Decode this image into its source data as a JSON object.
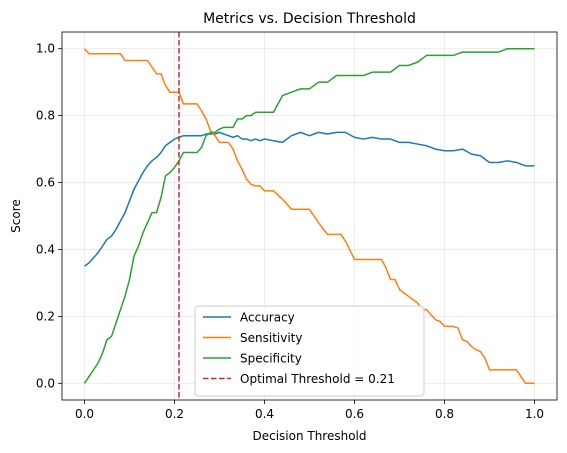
{
  "chart_data": {
    "type": "line",
    "title": "Metrics vs. Decision Threshold",
    "xlabel": "Decision Threshold",
    "ylabel": "Score",
    "xlim": [
      -0.05,
      1.05
    ],
    "ylim": [
      -0.05,
      1.05
    ],
    "xticks": [
      {
        "value": 0.0,
        "label": "0.0"
      },
      {
        "value": 0.2,
        "label": "0.2"
      },
      {
        "value": 0.4,
        "label": "0.4"
      },
      {
        "value": 0.6,
        "label": "0.6"
      },
      {
        "value": 0.8,
        "label": "0.8"
      },
      {
        "value": 1.0,
        "label": "1.0"
      }
    ],
    "yticks": [
      {
        "value": 0.0,
        "label": "0.0"
      },
      {
        "value": 0.2,
        "label": "0.2"
      },
      {
        "value": 0.4,
        "label": "0.4"
      },
      {
        "value": 0.6,
        "label": "0.6"
      },
      {
        "value": 0.8,
        "label": "0.8"
      },
      {
        "value": 1.0,
        "label": "1.0"
      }
    ],
    "grid": true,
    "legend_position": "lower-center",
    "series": [
      {
        "name": "Accuracy",
        "color": "#1f77b4",
        "x": [
          0.0,
          0.01,
          0.02,
          0.03,
          0.04,
          0.05,
          0.06,
          0.07,
          0.08,
          0.09,
          0.1,
          0.11,
          0.12,
          0.13,
          0.14,
          0.15,
          0.16,
          0.17,
          0.18,
          0.19,
          0.2,
          0.21,
          0.22,
          0.23,
          0.24,
          0.25,
          0.26,
          0.27,
          0.28,
          0.29,
          0.3,
          0.31,
          0.32,
          0.33,
          0.34,
          0.35,
          0.36,
          0.37,
          0.38,
          0.39,
          0.4,
          0.42,
          0.44,
          0.46,
          0.48,
          0.5,
          0.52,
          0.54,
          0.56,
          0.58,
          0.6,
          0.62,
          0.64,
          0.66,
          0.68,
          0.7,
          0.72,
          0.74,
          0.76,
          0.78,
          0.8,
          0.82,
          0.84,
          0.86,
          0.88,
          0.9,
          0.92,
          0.94,
          0.96,
          0.98,
          1.0
        ],
        "y": [
          0.35,
          0.36,
          0.375,
          0.39,
          0.41,
          0.43,
          0.44,
          0.46,
          0.485,
          0.51,
          0.545,
          0.58,
          0.605,
          0.63,
          0.65,
          0.665,
          0.675,
          0.69,
          0.71,
          0.72,
          0.73,
          0.735,
          0.74,
          0.74,
          0.74,
          0.74,
          0.74,
          0.745,
          0.745,
          0.745,
          0.75,
          0.745,
          0.74,
          0.735,
          0.74,
          0.73,
          0.73,
          0.725,
          0.73,
          0.725,
          0.73,
          0.725,
          0.72,
          0.74,
          0.75,
          0.74,
          0.75,
          0.745,
          0.75,
          0.75,
          0.735,
          0.73,
          0.735,
          0.73,
          0.73,
          0.72,
          0.72,
          0.715,
          0.71,
          0.7,
          0.695,
          0.695,
          0.7,
          0.685,
          0.68,
          0.66,
          0.66,
          0.665,
          0.66,
          0.65,
          0.65
        ]
      },
      {
        "name": "Sensitivity",
        "color": "#ff7f0e",
        "x": [
          0.0,
          0.01,
          0.02,
          0.04,
          0.06,
          0.08,
          0.09,
          0.1,
          0.12,
          0.14,
          0.15,
          0.16,
          0.17,
          0.18,
          0.19,
          0.2,
          0.21,
          0.22,
          0.23,
          0.24,
          0.25,
          0.26,
          0.27,
          0.28,
          0.29,
          0.3,
          0.31,
          0.32,
          0.33,
          0.34,
          0.35,
          0.36,
          0.37,
          0.38,
          0.39,
          0.4,
          0.41,
          0.42,
          0.44,
          0.46,
          0.48,
          0.5,
          0.52,
          0.54,
          0.56,
          0.57,
          0.58,
          0.6,
          0.62,
          0.64,
          0.66,
          0.67,
          0.68,
          0.69,
          0.7,
          0.71,
          0.72,
          0.73,
          0.74,
          0.75,
          0.76,
          0.77,
          0.78,
          0.79,
          0.8,
          0.82,
          0.83,
          0.84,
          0.85,
          0.86,
          0.87,
          0.88,
          0.89,
          0.9,
          0.92,
          0.94,
          0.96,
          0.98,
          1.0
        ],
        "y": [
          1.0,
          0.985,
          0.985,
          0.985,
          0.985,
          0.985,
          0.965,
          0.965,
          0.965,
          0.965,
          0.945,
          0.925,
          0.925,
          0.89,
          0.87,
          0.87,
          0.87,
          0.835,
          0.835,
          0.835,
          0.835,
          0.815,
          0.79,
          0.755,
          0.74,
          0.72,
          0.72,
          0.72,
          0.7,
          0.665,
          0.64,
          0.61,
          0.595,
          0.59,
          0.59,
          0.575,
          0.575,
          0.575,
          0.55,
          0.52,
          0.52,
          0.52,
          0.48,
          0.445,
          0.445,
          0.445,
          0.425,
          0.37,
          0.37,
          0.37,
          0.37,
          0.345,
          0.31,
          0.31,
          0.28,
          0.27,
          0.26,
          0.25,
          0.24,
          0.22,
          0.22,
          0.205,
          0.19,
          0.185,
          0.17,
          0.17,
          0.165,
          0.13,
          0.125,
          0.11,
          0.1,
          0.095,
          0.075,
          0.04,
          0.04,
          0.04,
          0.04,
          0.0,
          0.0
        ]
      },
      {
        "name": "Specificity",
        "color": "#2ca02c",
        "x": [
          0.0,
          0.01,
          0.02,
          0.03,
          0.04,
          0.05,
          0.06,
          0.07,
          0.08,
          0.09,
          0.1,
          0.11,
          0.12,
          0.13,
          0.14,
          0.15,
          0.16,
          0.17,
          0.18,
          0.19,
          0.2,
          0.21,
          0.22,
          0.23,
          0.24,
          0.25,
          0.26,
          0.27,
          0.28,
          0.29,
          0.3,
          0.31,
          0.32,
          0.33,
          0.34,
          0.35,
          0.36,
          0.37,
          0.38,
          0.39,
          0.4,
          0.42,
          0.44,
          0.46,
          0.48,
          0.5,
          0.52,
          0.54,
          0.56,
          0.58,
          0.6,
          0.62,
          0.64,
          0.66,
          0.68,
          0.7,
          0.72,
          0.74,
          0.76,
          0.78,
          0.8,
          0.82,
          0.84,
          0.86,
          0.88,
          0.9,
          0.92,
          0.94,
          0.96,
          0.98,
          1.0
        ],
        "y": [
          0.0,
          0.02,
          0.04,
          0.06,
          0.09,
          0.13,
          0.14,
          0.18,
          0.22,
          0.26,
          0.31,
          0.38,
          0.41,
          0.45,
          0.48,
          0.51,
          0.51,
          0.555,
          0.62,
          0.63,
          0.645,
          0.665,
          0.69,
          0.69,
          0.69,
          0.69,
          0.705,
          0.74,
          0.75,
          0.75,
          0.76,
          0.765,
          0.765,
          0.765,
          0.79,
          0.79,
          0.8,
          0.8,
          0.81,
          0.81,
          0.81,
          0.81,
          0.86,
          0.87,
          0.88,
          0.88,
          0.9,
          0.9,
          0.92,
          0.92,
          0.92,
          0.92,
          0.93,
          0.93,
          0.93,
          0.95,
          0.95,
          0.96,
          0.98,
          0.98,
          0.98,
          0.98,
          0.99,
          0.99,
          0.99,
          0.99,
          0.99,
          1.0,
          1.0,
          1.0,
          1.0
        ]
      }
    ],
    "threshold_line": {
      "name": "Optimal Threshold = 0.21",
      "x": 0.21,
      "color": "#d62728",
      "style": "dashed"
    }
  }
}
